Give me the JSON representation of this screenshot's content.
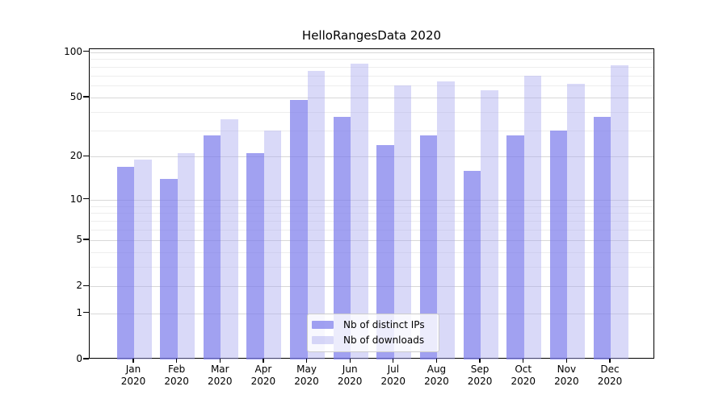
{
  "chart_data": {
    "type": "bar",
    "title": "HelloRangesData 2020",
    "categories": [
      "Jan",
      "Feb",
      "Mar",
      "Apr",
      "May",
      "Jun",
      "Jul",
      "Aug",
      "Sep",
      "Oct",
      "Nov",
      "Dec"
    ],
    "category_year": "2020",
    "series": [
      {
        "name": "Nb of distinct IPs",
        "color": "#7d7deb",
        "alpha": 0.72,
        "values": [
          17,
          14,
          28,
          21,
          48,
          37,
          24,
          28,
          16,
          28,
          30,
          37
        ]
      },
      {
        "name": "Nb of downloads",
        "color": "#aaaaf0",
        "alpha": 0.45,
        "values": [
          19,
          21,
          36,
          30,
          75,
          84,
          60,
          64,
          56,
          70,
          62,
          82
        ]
      }
    ],
    "xlabel": "",
    "ylabel": "",
    "yscale": "log1p",
    "ylim": [
      0,
      104
    ],
    "y_major_ticks": [
      100,
      50,
      20,
      10,
      5,
      2,
      1,
      0
    ],
    "y_minor_gridlines": [
      3,
      4,
      6,
      7,
      8,
      9,
      30,
      40,
      60,
      70,
      80,
      90
    ],
    "grid": true,
    "legend_position": "inside-bottom-center",
    "colors": {
      "major_grid": "#d8d8d8",
      "minor_grid": "#ededed",
      "axis_frame": "#000000",
      "text": "#000000",
      "legend_border": "#cccccc"
    }
  }
}
